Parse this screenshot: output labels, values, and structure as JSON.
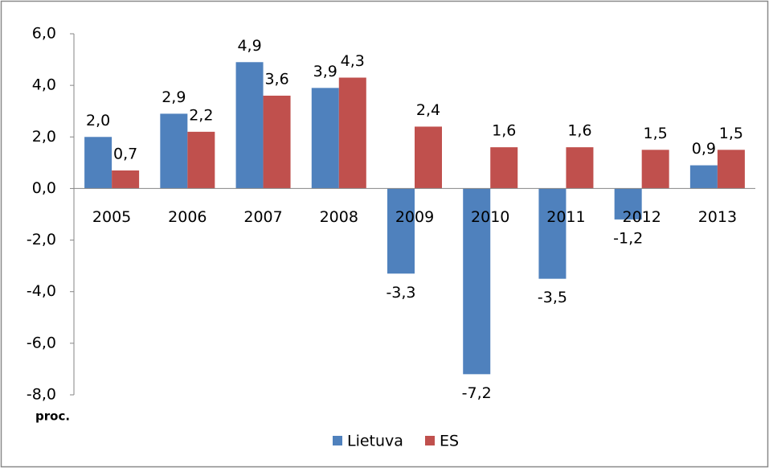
{
  "chart_data": {
    "type": "bar",
    "categories": [
      "2005",
      "2006",
      "2007",
      "2008",
      "2009",
      "2010",
      "2011",
      "2012",
      "2013"
    ],
    "series": [
      {
        "name": "Lietuva",
        "color": "#4f81bd",
        "values": [
          2.0,
          2.9,
          4.9,
          3.9,
          -3.3,
          -7.2,
          -3.5,
          -1.2,
          0.9
        ],
        "value_labels": [
          "2,0",
          "2,9",
          "4,9",
          "3,9",
          "-3,3",
          "-7,2",
          "-3,5",
          "-1,2",
          "0,9"
        ]
      },
      {
        "name": "ES",
        "color": "#c0504d",
        "values": [
          0.7,
          2.2,
          3.6,
          4.3,
          2.4,
          1.6,
          1.6,
          1.5,
          1.5
        ],
        "value_labels": [
          "0,7",
          "2,2",
          "3,6",
          "4,3",
          "2,4",
          "1,6",
          "1,6",
          "1,5",
          "1,5"
        ]
      }
    ],
    "ylim": [
      -8,
      6
    ],
    "yticks": [
      {
        "value": -8,
        "label": "-8,0"
      },
      {
        "value": -6,
        "label": "-6,0"
      },
      {
        "value": -4,
        "label": "-4,0"
      },
      {
        "value": -2,
        "label": "-2,0"
      },
      {
        "value": 0,
        "label": "0,0"
      },
      {
        "value": 2,
        "label": "2,0"
      },
      {
        "value": 4,
        "label": "4,0"
      },
      {
        "value": 6,
        "label": "6,0"
      }
    ],
    "y_label": "proc.",
    "grid": false,
    "legend": "bottom"
  }
}
